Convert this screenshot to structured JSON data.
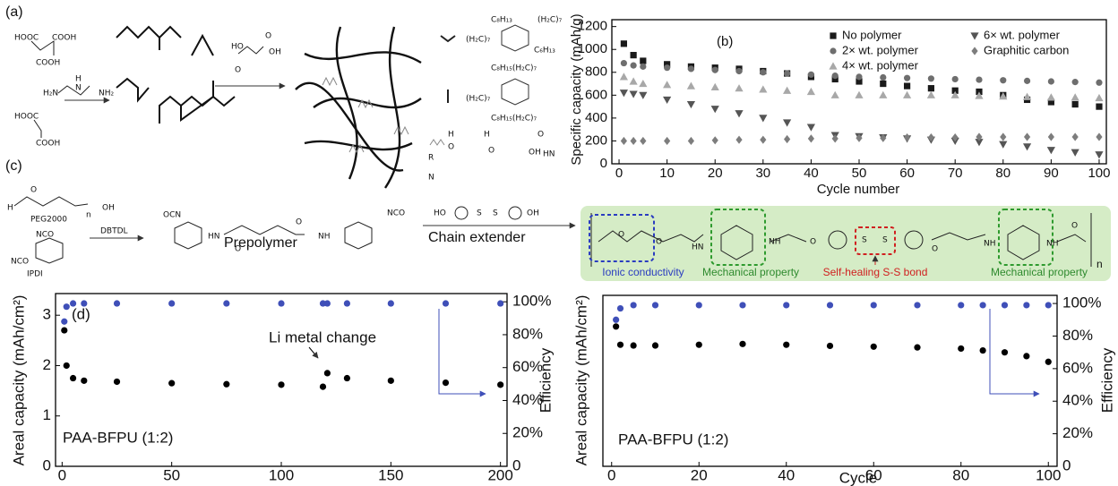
{
  "schemes": {
    "a": {
      "label": "(a)",
      "reactants": [
        "HOOC",
        "COOH",
        "COOH",
        "H",
        "H₂N",
        "N",
        "NH₂",
        "HOOC",
        "COOH"
      ],
      "acid": [
        "HO",
        "O",
        "O",
        "OH"
      ],
      "formulas": [
        "C₈H₁₃",
        "(H₂C)₇",
        "(H₂C)₇",
        "C₆H₁₃",
        "C₈H₁₅(H₂C)₇",
        "(H₂C)₇",
        "C₈H₁₅(H₂C)₇",
        "H",
        "O",
        "H",
        "O",
        "O",
        "OH",
        "HN",
        "R",
        "N"
      ]
    },
    "c": {
      "label": "(c)",
      "peg": "PEG2000",
      "ipdi": "IPDI",
      "catalyst": "DBTDL",
      "prepolymer": "Prepolymer",
      "extender": "Chain extender",
      "n": "n",
      "atoms": [
        "H",
        "O",
        "OH",
        "NCO",
        "NCO",
        "OCN",
        "NCO",
        "HN",
        "O",
        "O",
        "NH",
        "HO",
        "S",
        "S",
        "OH"
      ],
      "product_labels": [
        "Ionic conductivity",
        "Mechanical property",
        "Self-healing S-S bond",
        "Mechanical property"
      ],
      "product_atoms": [
        "O",
        "O",
        "HN",
        "NH",
        "O",
        "S",
        "S",
        "O",
        "NH",
        "NH",
        "O",
        "n"
      ]
    }
  },
  "chart_data": [
    {
      "type": "scatter",
      "panel_label": "(b)",
      "xlabel": "Cycle number",
      "ylabel": "Specific capacity (mAh/g)",
      "x": [
        1,
        3,
        5,
        10,
        15,
        20,
        25,
        30,
        35,
        40,
        45,
        50,
        55,
        60,
        65,
        70,
        75,
        80,
        85,
        90,
        95,
        100
      ],
      "xlim": [
        -1.5,
        101.5
      ],
      "xticks": [
        0,
        10,
        20,
        30,
        40,
        50,
        60,
        70,
        80,
        90,
        100
      ],
      "ylim": [
        0,
        1260
      ],
      "yticks": [
        0,
        200,
        400,
        600,
        800,
        1000,
        1200
      ],
      "series": [
        {
          "name": "No polymer",
          "color": "#1a1a1a",
          "marker": "square",
          "values": [
            1050,
            950,
            900,
            870,
            850,
            840,
            830,
            810,
            790,
            760,
            740,
            720,
            700,
            680,
            660,
            640,
            630,
            600,
            560,
            540,
            520,
            500
          ]
        },
        {
          "name": "2× wt. polymer",
          "color": "#6e6e6e",
          "marker": "circle",
          "values": [
            880,
            860,
            850,
            840,
            830,
            820,
            810,
            800,
            790,
            780,
            770,
            760,
            755,
            750,
            745,
            740,
            735,
            730,
            725,
            720,
            715,
            710
          ]
        },
        {
          "name": "4× wt. polymer",
          "color": "#a8a8a8",
          "marker": "triangle-up",
          "values": [
            760,
            720,
            700,
            690,
            680,
            670,
            660,
            650,
            640,
            630,
            600,
            600,
            600,
            600,
            600,
            600,
            595,
            590,
            585,
            580,
            580,
            575
          ]
        },
        {
          "name": "6× wt. polymer",
          "color": "#555555",
          "marker": "triangle-down",
          "values": [
            620,
            610,
            600,
            560,
            520,
            480,
            440,
            400,
            360,
            320,
            250,
            240,
            230,
            220,
            210,
            200,
            190,
            170,
            150,
            120,
            100,
            80
          ]
        },
        {
          "name": "Graphitic carbon",
          "color": "#7d7d7d",
          "marker": "diamond",
          "values": [
            200,
            200,
            200,
            200,
            200,
            205,
            210,
            210,
            215,
            220,
            220,
            225,
            225,
            230,
            230,
            230,
            235,
            235,
            235,
            235,
            235,
            235
          ]
        }
      ]
    },
    {
      "type": "scatter",
      "panel_label": "(d)",
      "ylabel": "Areal capacity (mAh/cm²)",
      "y2label": "Efficiency",
      "annotations": [
        "Li metal change",
        "PAA-BFPU (1:2)"
      ],
      "x": [
        1,
        2,
        5,
        10,
        25,
        50,
        75,
        100,
        119,
        121,
        130,
        150,
        175,
        200
      ],
      "xlim": [
        -3,
        203
      ],
      "xticks": [
        0,
        50,
        100,
        150,
        200
      ],
      "ylim": [
        0,
        3.43
      ],
      "yticks": [
        0,
        1,
        2,
        3
      ],
      "y2lim": [
        0,
        105
      ],
      "y2ticks": [
        0,
        {
          "value": 20,
          "label": "20%"
        },
        {
          "value": 40,
          "label": "40%"
        },
        {
          "value": 60,
          "label": "60%"
        },
        {
          "value": 80,
          "label": "80%"
        },
        {
          "value": 100,
          "label": "100%"
        }
      ],
      "series": [
        {
          "color": "#000000",
          "marker": "circle",
          "values": [
            2.7,
            2.0,
            1.75,
            1.7,
            1.68,
            1.65,
            1.63,
            1.62,
            1.58,
            1.85,
            1.75,
            1.7,
            1.66,
            1.62
          ]
        },
        {
          "color": "#3f4fb8",
          "marker": "circle",
          "axis": "y2",
          "values": [
            88,
            97,
            99,
            99,
            99,
            99,
            99,
            99,
            99,
            99,
            99,
            99,
            99,
            99
          ]
        }
      ]
    },
    {
      "type": "scatter",
      "xlabel": "Cycle",
      "ylabel": "Areal capacity (mAh/cm²)",
      "y2label": "Efficiency",
      "annotations": [
        "PAA-BFPU (1:2)"
      ],
      "x": [
        1,
        2,
        5,
        10,
        20,
        30,
        40,
        50,
        60,
        70,
        80,
        85,
        90,
        95,
        100
      ],
      "xlim": [
        -2,
        102
      ],
      "xticks": [
        0,
        20,
        40,
        60,
        80,
        100
      ],
      "ylim": [
        0,
        4.5
      ],
      "y2lim": [
        0,
        105
      ],
      "y2ticks": [
        0,
        {
          "value": 20,
          "label": "20%"
        },
        {
          "value": 40,
          "label": "40%"
        },
        {
          "value": 60,
          "label": "60%"
        },
        {
          "value": 80,
          "label": "80%"
        },
        {
          "value": 100,
          "label": "100%"
        }
      ],
      "series": [
        {
          "color": "#000000",
          "marker": "circle",
          "values": [
            3.68,
            3.2,
            3.18,
            3.18,
            3.2,
            3.22,
            3.2,
            3.17,
            3.15,
            3.13,
            3.1,
            3.05,
            3.0,
            2.9,
            2.75
          ]
        },
        {
          "color": "#3f4fb8",
          "marker": "circle",
          "axis": "y2",
          "values": [
            90,
            97,
            99,
            99,
            99,
            99,
            99,
            99,
            99,
            99,
            99,
            99,
            99,
            99,
            99
          ]
        }
      ]
    }
  ]
}
